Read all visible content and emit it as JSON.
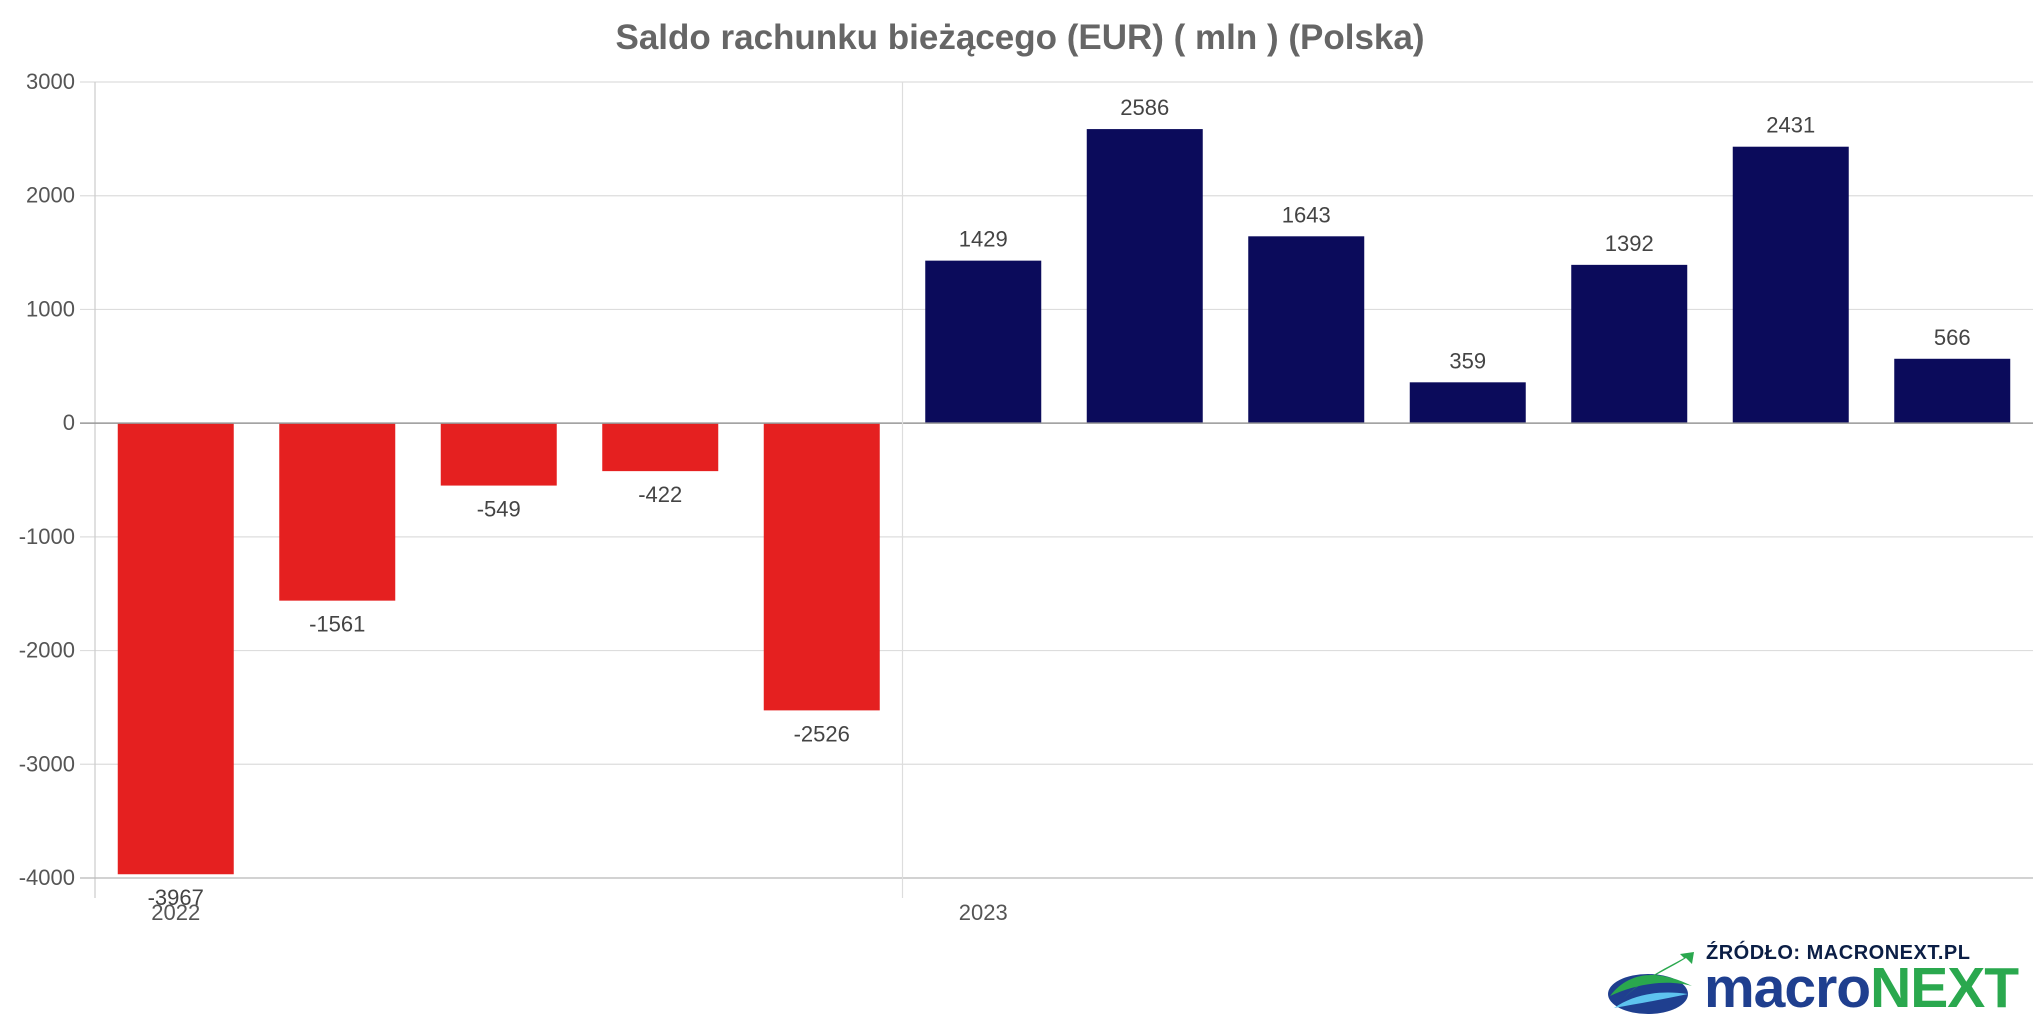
{
  "chart_data": {
    "type": "bar",
    "title": "Saldo rachunku bieżącego (EUR) ( mln ) (Polska)",
    "xlabel": "",
    "ylabel": "",
    "ylim": [
      -4000,
      3000
    ],
    "yticks": [
      3000,
      2000,
      1000,
      0,
      -1000,
      -2000,
      -3000,
      -4000
    ],
    "group_labels": [
      {
        "label": "2022",
        "first_index": 0
      },
      {
        "label": "2023",
        "first_index": 5
      }
    ],
    "values": [
      -3967,
      -1561,
      -549,
      -422,
      -2526,
      1429,
      2586,
      1643,
      359,
      1392,
      2431,
      566
    ],
    "positive_color": "#0b0b5b",
    "negative_color": "#e52020",
    "grid": true,
    "legend": "none"
  },
  "source": {
    "label": "ŹRÓDŁO: MACRONEXT.PL",
    "brand_part_1": "macro",
    "brand_part_2": "NEXT"
  }
}
